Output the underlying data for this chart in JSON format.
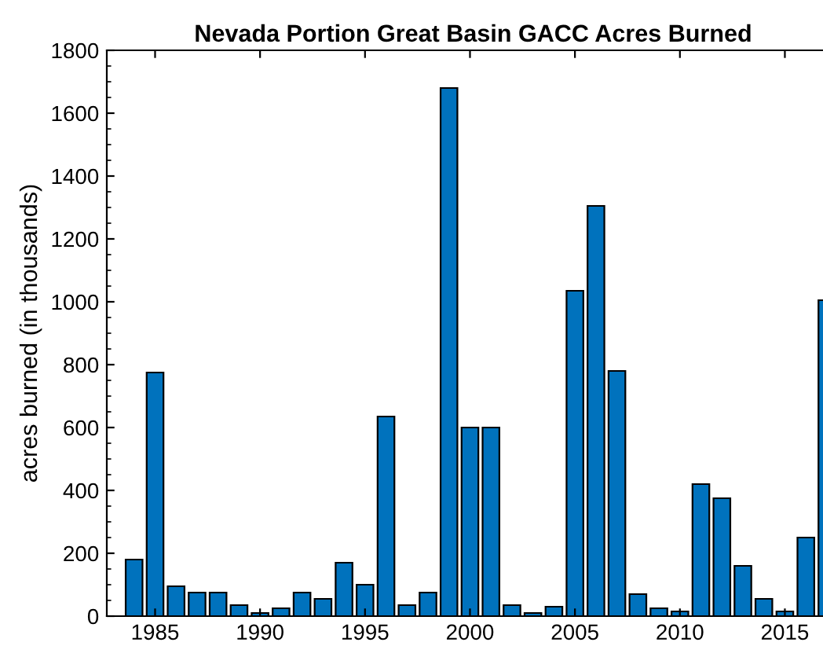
{
  "chart_data": {
    "type": "bar",
    "title": "Nevada Portion Great Basin GACC Acres Burned",
    "ylabel": "acres burned (in thousands)",
    "x": [
      1984,
      1985,
      1986,
      1987,
      1988,
      1989,
      1990,
      1991,
      1992,
      1993,
      1994,
      1995,
      1996,
      1997,
      1998,
      1999,
      2000,
      2001,
      2002,
      2003,
      2004,
      2005,
      2006,
      2007,
      2008,
      2009,
      2010,
      2011,
      2012,
      2013,
      2014,
      2015,
      2016,
      2017
    ],
    "values": [
      180,
      775,
      95,
      75,
      75,
      35,
      10,
      25,
      75,
      55,
      170,
      100,
      635,
      35,
      75,
      1680,
      600,
      600,
      35,
      10,
      30,
      1035,
      1305,
      780,
      70,
      25,
      15,
      420,
      375,
      160,
      55,
      15,
      250,
      1005
    ],
    "color": "#0072bd",
    "xlim": [
      1982.7,
      2017.6
    ],
    "xticks": [
      1985,
      1990,
      1995,
      2000,
      2005,
      2010,
      2015
    ],
    "ylim": [
      0,
      1800
    ],
    "yticks": [
      0,
      200,
      400,
      600,
      800,
      1000,
      1200,
      1400,
      1600,
      1800
    ],
    "grid": false,
    "legend": false
  }
}
